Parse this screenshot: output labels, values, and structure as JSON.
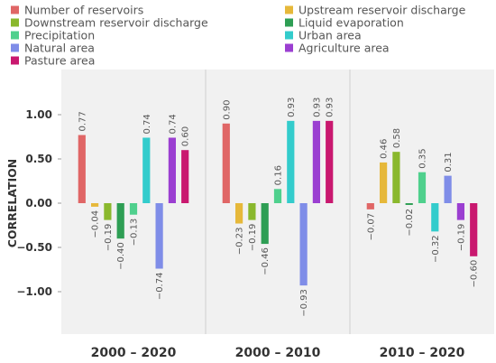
{
  "chart_data": {
    "type": "bar",
    "ylabel": "CORRELATION",
    "ylim": [
      -1.45,
      1.45
    ],
    "yticks": [
      1.0,
      0.5,
      0.0,
      -0.5,
      -1.0
    ],
    "ytick_labels": [
      "1.00",
      "0.50",
      "0.00",
      "−0.50",
      "−1.00"
    ],
    "categories": [
      "2000 – 2020",
      "2000 – 2010",
      "2010 – 2020"
    ],
    "legend_position": "top",
    "grid": false,
    "series": [
      {
        "name": "Number of reservoirs",
        "color": "#e06666",
        "values": [
          0.77,
          0.9,
          -0.07
        ],
        "labels": [
          "0.77",
          "0.90",
          "−0.07"
        ]
      },
      {
        "name": "Upstream reservoir discharge",
        "color": "#e6b83a",
        "values": [
          -0.04,
          -0.23,
          0.46
        ],
        "labels": [
          "−0.04",
          "−0.23",
          "0.46"
        ]
      },
      {
        "name": "Downstream reservoir discharge",
        "color": "#8ab82d",
        "values": [
          -0.19,
          -0.19,
          0.58
        ],
        "labels": [
          "−0.19",
          "−0.19",
          "0.58"
        ]
      },
      {
        "name": "Liquid evaporation",
        "color": "#2e9e54",
        "values": [
          -0.4,
          -0.46,
          -0.02
        ],
        "labels": [
          "−0.40",
          "−0.46",
          "−0.02"
        ]
      },
      {
        "name": "Precipitation",
        "color": "#4fd08d",
        "values": [
          -0.13,
          0.16,
          0.35
        ],
        "labels": [
          "−0.13",
          "0.16",
          "0.35"
        ]
      },
      {
        "name": "Urban area",
        "color": "#33cccc",
        "values": [
          0.74,
          0.93,
          -0.32
        ],
        "labels": [
          "0.74",
          "0.93",
          "−0.32"
        ]
      },
      {
        "name": "Natural area",
        "color": "#7f8de8",
        "values": [
          -0.74,
          -0.93,
          0.31
        ],
        "labels": [
          "−0.74",
          "−0.93",
          "0.31"
        ]
      },
      {
        "name": "Agriculture area",
        "color": "#9b3fd1",
        "values": [
          0.74,
          0.93,
          -0.19
        ],
        "labels": [
          "0.74",
          "0.93",
          "−0.19"
        ]
      },
      {
        "name": "Pasture area",
        "color": "#c9186f",
        "values": [
          0.6,
          0.93,
          -0.6
        ],
        "labels": [
          "0.60",
          "0.93",
          "−0.60"
        ]
      }
    ]
  }
}
